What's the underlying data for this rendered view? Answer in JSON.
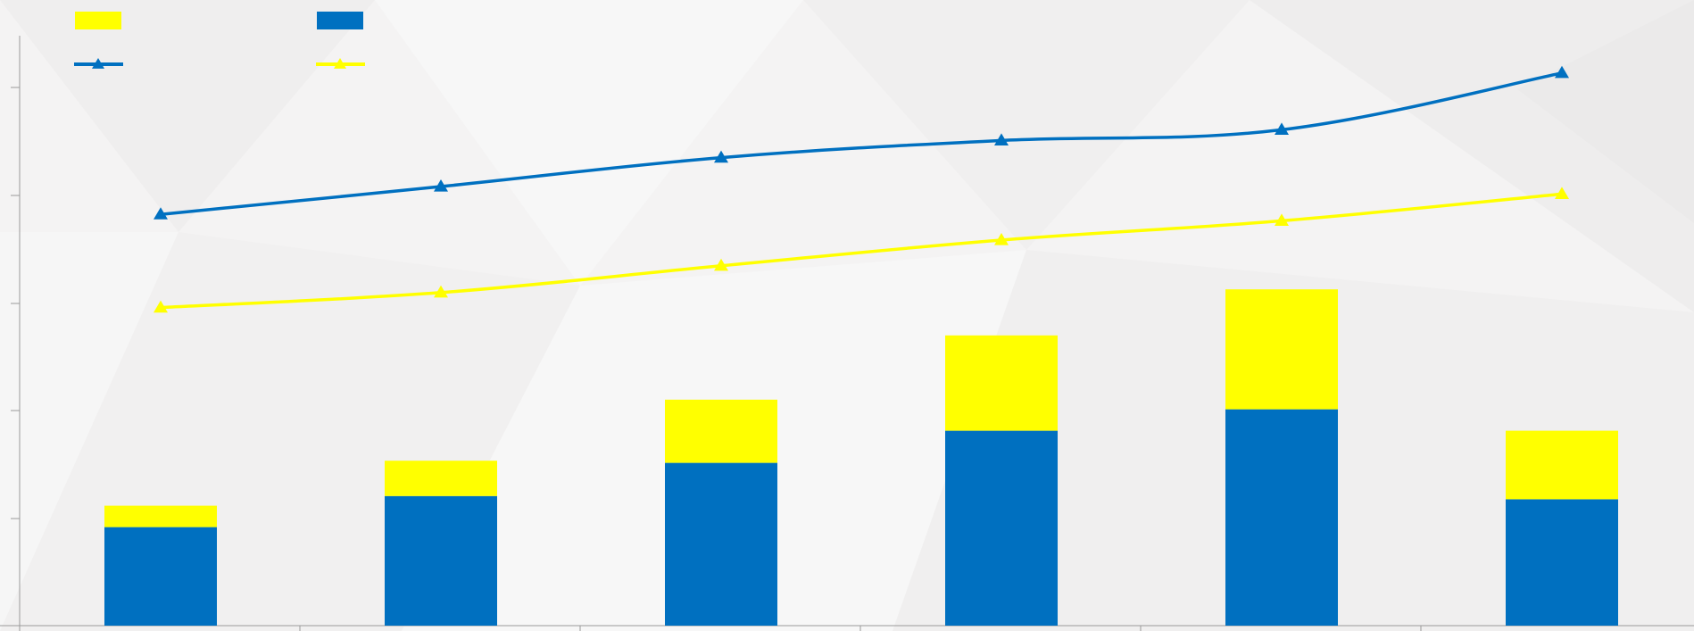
{
  "chart_data": {
    "type": "bar",
    "stacked": true,
    "title": "",
    "xlabel": "",
    "ylabel": "",
    "categories": [
      "",
      "",
      "",
      "",
      "",
      ""
    ],
    "ylim": [
      0,
      5.5
    ],
    "bar_series": [
      {
        "values": [
          0.92,
          1.21,
          1.52,
          1.82,
          2.02,
          1.18
        ],
        "color": "#0070c0"
      },
      {
        "values": [
          0.2,
          0.33,
          0.59,
          0.89,
          1.12,
          0.64
        ],
        "color": "#ffff00"
      }
    ],
    "line_series": [
      {
        "values": [
          3.84,
          4.1,
          4.37,
          4.53,
          4.63,
          5.16
        ],
        "color": "#0070c0",
        "marker": "triangle"
      },
      {
        "values": [
          2.97,
          3.11,
          3.36,
          3.6,
          3.78,
          4.03
        ],
        "color": "#ffff00",
        "marker": "triangle"
      }
    ],
    "legend": {
      "position": "top-left",
      "entries": [
        {
          "kind": "bar",
          "color": "#ffff00",
          "label": ""
        },
        {
          "kind": "bar",
          "color": "#0070c0",
          "label": ""
        },
        {
          "kind": "line",
          "color": "#0070c0",
          "label": ""
        },
        {
          "kind": "line",
          "color": "#ffff00",
          "label": ""
        }
      ]
    },
    "grid": false
  }
}
